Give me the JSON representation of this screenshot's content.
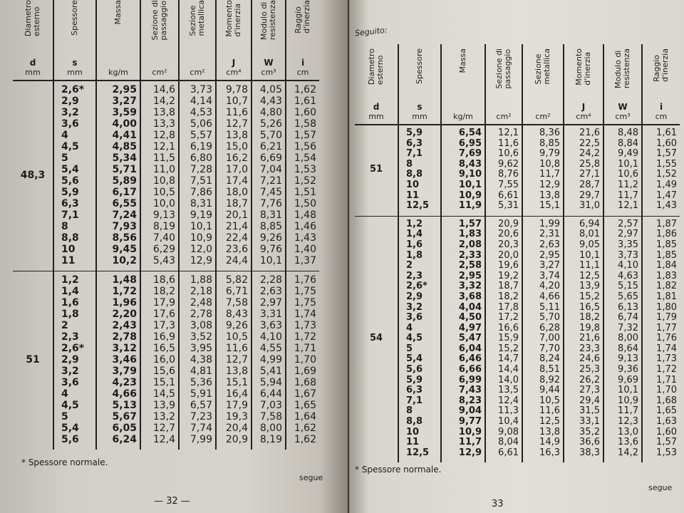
{
  "headers": [
    {
      "name": "Diametro\nesterno",
      "symbol": "d",
      "unit": "mm"
    },
    {
      "name": "Spessore",
      "symbol": "s",
      "unit": "mm"
    },
    {
      "name": "Massa",
      "symbol": "",
      "unit": "kg/m"
    },
    {
      "name": "Sezione di\npassaggio",
      "symbol": "",
      "unit": "cm²"
    },
    {
      "name": "Sezione\nmetallica",
      "symbol": "",
      "unit": "cm²"
    },
    {
      "name": "Momento\nd'inerzia",
      "symbol": "J",
      "unit": "cm⁴"
    },
    {
      "name": "Modulo di\nresistenza",
      "symbol": "W",
      "unit": "cm³"
    },
    {
      "name": "Raggio\nd'inerzia",
      "symbol": "i",
      "unit": "cm"
    }
  ],
  "left_page": {
    "groups": [
      {
        "d": "48,3",
        "s": [
          "2,6*",
          "2,9",
          "3,2",
          "3,6",
          "4",
          "4,5",
          "5",
          "5,4",
          "5,6",
          "5,9",
          "6,3",
          "7,1",
          "8",
          "8,8",
          "10",
          "11"
        ],
        "massa": [
          "2,95",
          "3,27",
          "3,59",
          "4,00",
          "4,41",
          "4,85",
          "5,34",
          "5,71",
          "5,89",
          "6,17",
          "6,55",
          "7,24",
          "7,93",
          "8,56",
          "9,45",
          "10,2"
        ],
        "sez_passaggio": [
          "14,6",
          "14,2",
          "13,8",
          "13,3",
          "12,8",
          "12,1",
          "11,5",
          "11,0",
          "10,8",
          "10,5",
          "10,0",
          "9,13",
          "8,19",
          "7,40",
          "6,29",
          "5,43"
        ],
        "sez_metallica": [
          "3,73",
          "4,14",
          "4,53",
          "5,06",
          "5,57",
          "6,19",
          "6,80",
          "7,28",
          "7,51",
          "7,86",
          "8,31",
          "9,19",
          "10,1",
          "10,9",
          "12,0",
          "12,9"
        ],
        "J": [
          "9,78",
          "10,7",
          "11,6",
          "12,7",
          "13,8",
          "15,0",
          "16,2",
          "17,0",
          "17,4",
          "18,0",
          "18,7",
          "20,1",
          "21,4",
          "22,4",
          "23,6",
          "24,4"
        ],
        "W": [
          "4,05",
          "4,43",
          "4,80",
          "5,26",
          "5,70",
          "6,21",
          "6,69",
          "7,04",
          "7,21",
          "7,45",
          "7,76",
          "8,31",
          "8,85",
          "9,26",
          "9,76",
          "10,1"
        ],
        "i": [
          "1,62",
          "1,61",
          "1,60",
          "1,58",
          "1,57",
          "1,56",
          "1,54",
          "1,53",
          "1,52",
          "1,51",
          "1,50",
          "1,48",
          "1,46",
          "1,43",
          "1,40",
          "1,37"
        ]
      },
      {
        "d": "51",
        "s": [
          "1,2",
          "1,4",
          "1,6",
          "1,8",
          "2",
          "2,3",
          "2,6*",
          "2,9",
          "3,2",
          "3,6",
          "4",
          "4,5",
          "5",
          "5,4",
          "5,6"
        ],
        "massa": [
          "1,48",
          "1,72",
          "1,96",
          "2,20",
          "2,43",
          "2,78",
          "3,12",
          "3,46",
          "3,79",
          "4,23",
          "4,66",
          "5,13",
          "5,67",
          "6,05",
          "6,24"
        ],
        "sez_passaggio": [
          "18,6",
          "18,2",
          "17,9",
          "17,6",
          "17,3",
          "16,9",
          "16,5",
          "16,0",
          "15,6",
          "15,1",
          "14,5",
          "13,9",
          "13,2",
          "12,7",
          "12,4"
        ],
        "sez_metallica": [
          "1,88",
          "2,18",
          "2,48",
          "2,78",
          "3,08",
          "3,52",
          "3,95",
          "4,38",
          "4,81",
          "5,36",
          "5,91",
          "6,57",
          "7,23",
          "7,74",
          "7,99"
        ],
        "J": [
          "5,82",
          "6,71",
          "7,58",
          "8,43",
          "9,26",
          "10,5",
          "11,6",
          "12,7",
          "13,8",
          "15,1",
          "16,4",
          "17,9",
          "19,3",
          "20,4",
          "20,9"
        ],
        "W": [
          "2,28",
          "2,63",
          "2,97",
          "3,31",
          "3,63",
          "4,10",
          "4,55",
          "4,99",
          "5,41",
          "5,94",
          "6,44",
          "7,03",
          "7,58",
          "8,00",
          "8,19"
        ],
        "i": [
          "1,76",
          "1,75",
          "1,75",
          "1,74",
          "1,73",
          "1,72",
          "1,71",
          "1,70",
          "1,69",
          "1,68",
          "1,67",
          "1,65",
          "1,64",
          "1,62",
          "1,62"
        ]
      }
    ],
    "footnote": "* Spessore normale.",
    "continues": "segue",
    "page_number": "— 32 —"
  },
  "right_page": {
    "continued_label": "Seguito:",
    "groups": [
      {
        "d": "51",
        "s": [
          "5,9",
          "6,3",
          "7,1",
          "8",
          "8,8",
          "10",
          "11",
          "12,5"
        ],
        "massa": [
          "6,54",
          "6,95",
          "7,69",
          "8,43",
          "9,10",
          "10,1",
          "10,9",
          "11,9"
        ],
        "sez_passaggio": [
          "12,1",
          "11,6",
          "10,6",
          "9,62",
          "8,76",
          "7,55",
          "6,61",
          "5,31"
        ],
        "sez_metallica": [
          "8,36",
          "8,85",
          "9,79",
          "10,8",
          "11,7",
          "12,9",
          "13,8",
          "15,1"
        ],
        "J": [
          "21,6",
          "22,5",
          "24,2",
          "25,8",
          "27,1",
          "28,7",
          "29,7",
          "31,0"
        ],
        "W": [
          "8,48",
          "8,84",
          "9,49",
          "10,1",
          "10,6",
          "11,2",
          "11,7",
          "12,1"
        ],
        "i": [
          "1,61",
          "1,60",
          "1,57",
          "1,55",
          "1,52",
          "1,49",
          "1,47",
          "1,43"
        ]
      },
      {
        "d": "54",
        "s": [
          "1,2",
          "1,4",
          "1,6",
          "1,8",
          "2",
          "2,3",
          "2,6*",
          "2,9",
          "3,2",
          "3,6",
          "4",
          "4,5",
          "5",
          "5,4",
          "5,6",
          "5,9",
          "6,3",
          "7,1",
          "8",
          "8,8",
          "10",
          "11",
          "12,5"
        ],
        "massa": [
          "1,57",
          "1,83",
          "2,08",
          "2,33",
          "2,58",
          "2,95",
          "3,32",
          "3,68",
          "4,04",
          "4,50",
          "4,97",
          "5,47",
          "6,04",
          "6,46",
          "6,66",
          "6,99",
          "7,43",
          "8,23",
          "9,04",
          "9,77",
          "10,9",
          "11,7",
          "12,9"
        ],
        "sez_passaggio": [
          "20,9",
          "20,6",
          "20,3",
          "20,0",
          "19,6",
          "19,2",
          "18,7",
          "18,2",
          "17,8",
          "17,2",
          "16,6",
          "15,9",
          "15,2",
          "14,7",
          "14,4",
          "14,0",
          "13,5",
          "12,4",
          "11,3",
          "10,4",
          "9,08",
          "8,04",
          "6,61"
        ],
        "sez_metallica": [
          "1,99",
          "2,31",
          "2,63",
          "2,95",
          "3,27",
          "3,74",
          "4,20",
          "4,66",
          "5,11",
          "5,70",
          "6,28",
          "7,00",
          "7,70",
          "8,24",
          "8,51",
          "8,92",
          "9,44",
          "10,5",
          "11,6",
          "12,5",
          "13,8",
          "14,9",
          "16,3"
        ],
        "J": [
          "6,94",
          "8,01",
          "9,05",
          "10,1",
          "11,1",
          "12,5",
          "13,9",
          "15,2",
          "16,5",
          "18,2",
          "19,8",
          "21,6",
          "23,3",
          "24,6",
          "25,3",
          "26,2",
          "27,3",
          "29,4",
          "31,5",
          "33,1",
          "35,2",
          "36,6",
          "38,3"
        ],
        "W": [
          "2,57",
          "2,97",
          "3,35",
          "3,73",
          "4,10",
          "4,63",
          "5,15",
          "5,65",
          "6,13",
          "6,74",
          "7,32",
          "8,00",
          "8,64",
          "9,13",
          "9,36",
          "9,69",
          "10,1",
          "10,9",
          "11,7",
          "12,3",
          "13,0",
          "13,6",
          "14,2"
        ],
        "i": [
          "1,87",
          "1,86",
          "1,85",
          "1,85",
          "1,84",
          "1,83",
          "1,82",
          "1,81",
          "1,80",
          "1,79",
          "1,77",
          "1,76",
          "1,74",
          "1,73",
          "1,72",
          "1,71",
          "1,70",
          "1,68",
          "1,65",
          "1,63",
          "1,60",
          "1,57",
          "1,53"
        ]
      }
    ],
    "footnote": "* Spessore normale.",
    "continues": "segue",
    "page_number": "33"
  }
}
